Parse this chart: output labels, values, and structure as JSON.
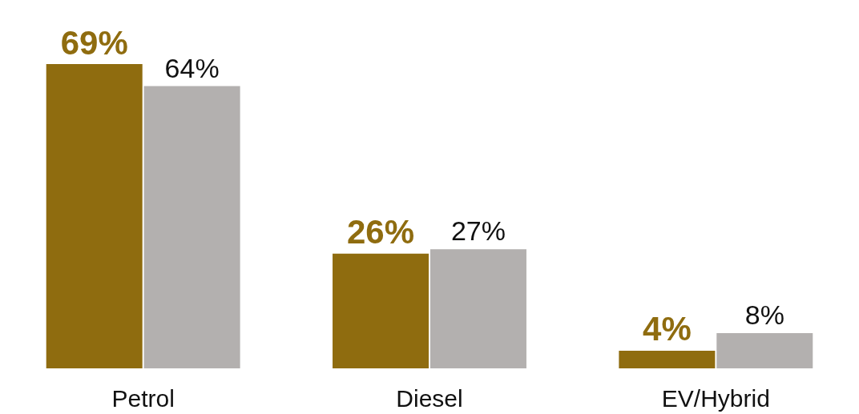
{
  "chart_data": {
    "type": "bar",
    "categories": [
      "Petrol",
      "Diesel",
      "EV/Hybrid"
    ],
    "series": [
      {
        "color": "#8f6c0f",
        "values": [
          69,
          26,
          4
        ],
        "value_labels": [
          "69%",
          "26%",
          "4%"
        ]
      },
      {
        "color": "#b3b0af",
        "values": [
          64,
          27,
          8
        ],
        "value_labels": [
          "64%",
          "27%",
          "8%"
        ]
      }
    ]
  }
}
